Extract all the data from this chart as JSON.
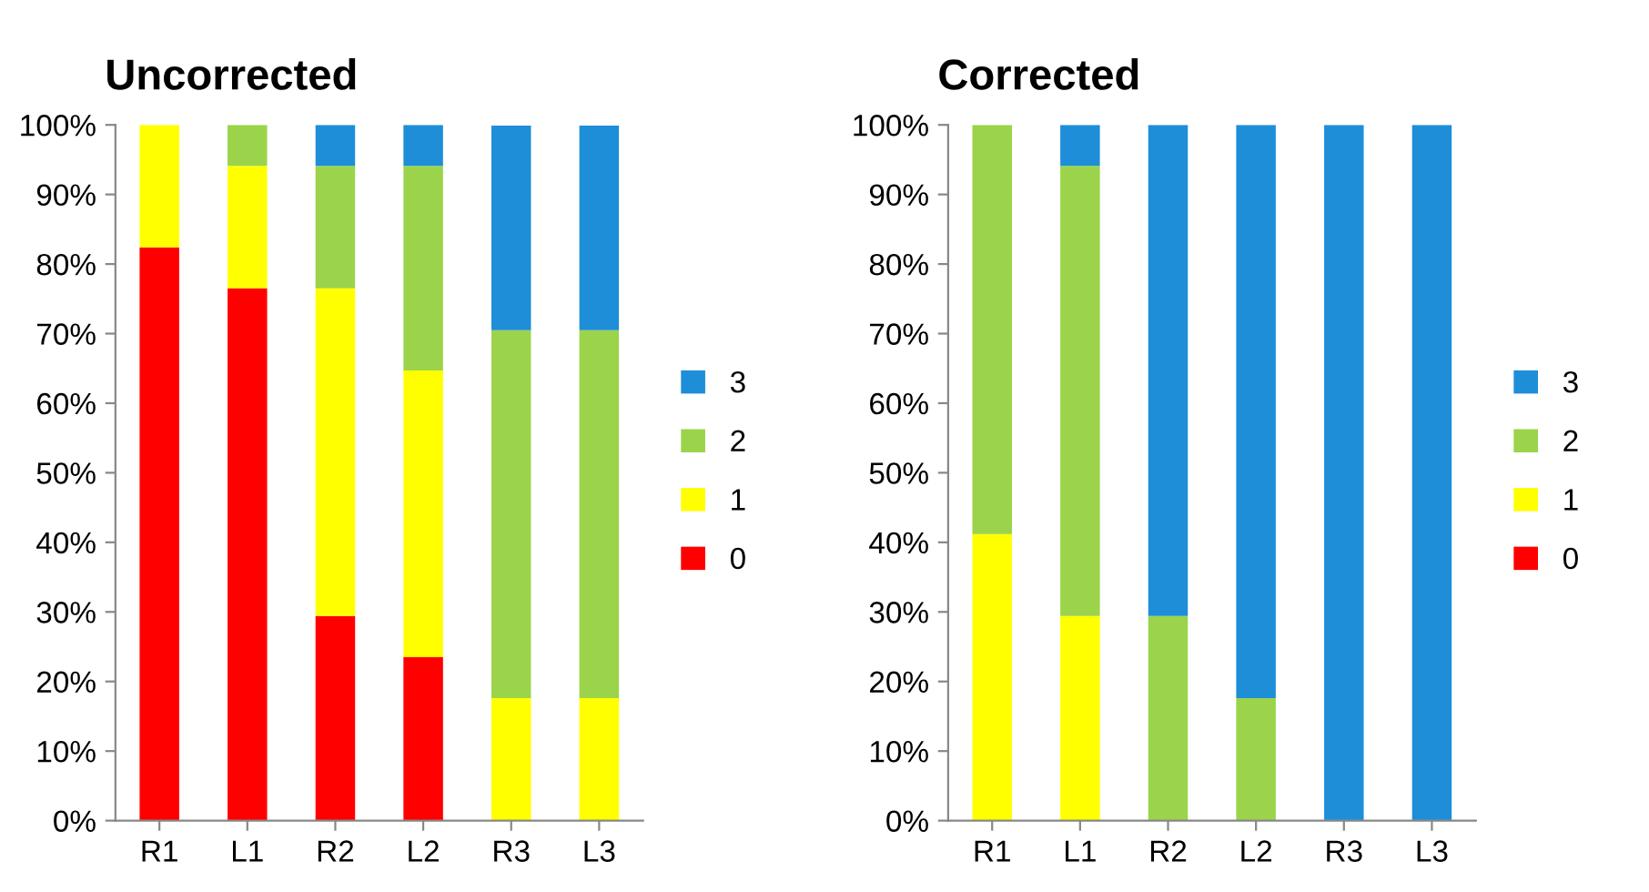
{
  "chart_data": [
    {
      "type": "bar",
      "title": "Uncorrected",
      "stacked": true,
      "legend": "right",
      "categories": [
        "R1",
        "L1",
        "R2",
        "L2",
        "R3",
        "L3"
      ],
      "ylim": [
        0,
        100
      ],
      "yticks": [
        {
          "value": 0,
          "label": "0%"
        },
        {
          "value": 10,
          "label": "10%"
        },
        {
          "value": 20,
          "label": "20%"
        },
        {
          "value": 30,
          "label": "30%"
        },
        {
          "value": 40,
          "label": "40%"
        },
        {
          "value": 50,
          "label": "50%"
        },
        {
          "value": 60,
          "label": "60%"
        },
        {
          "value": 70,
          "label": "70%"
        },
        {
          "value": 80,
          "label": "80%"
        },
        {
          "value": 90,
          "label": "90%"
        },
        {
          "value": 100,
          "label": "100%"
        }
      ],
      "series": [
        {
          "name": "0",
          "color": "#ff0000",
          "values": [
            82.4,
            76.5,
            29.4,
            23.5,
            0,
            0
          ]
        },
        {
          "name": "1",
          "color": "#ffff00",
          "values": [
            17.6,
            17.6,
            47.1,
            41.2,
            17.6,
            17.6
          ]
        },
        {
          "name": "2",
          "color": "#9bd44a",
          "values": [
            0,
            5.9,
            17.6,
            29.4,
            52.9,
            52.9
          ]
        },
        {
          "name": "3",
          "color": "#1e8ed8",
          "values": [
            0,
            0,
            5.9,
            5.9,
            29.4,
            29.4
          ]
        }
      ]
    },
    {
      "type": "bar",
      "title": "Corrected",
      "stacked": true,
      "legend": "right",
      "categories": [
        "R1",
        "L1",
        "R2",
        "L2",
        "R3",
        "L3"
      ],
      "ylim": [
        0,
        100
      ],
      "yticks": [
        {
          "value": 0,
          "label": "0%"
        },
        {
          "value": 10,
          "label": "10%"
        },
        {
          "value": 20,
          "label": "20%"
        },
        {
          "value": 30,
          "label": "30%"
        },
        {
          "value": 40,
          "label": "40%"
        },
        {
          "value": 50,
          "label": "50%"
        },
        {
          "value": 60,
          "label": "60%"
        },
        {
          "value": 70,
          "label": "70%"
        },
        {
          "value": 80,
          "label": "80%"
        },
        {
          "value": 90,
          "label": "90%"
        },
        {
          "value": 100,
          "label": "100%"
        }
      ],
      "series": [
        {
          "name": "0",
          "color": "#ff0000",
          "values": [
            0,
            0,
            0,
            0,
            0,
            0
          ]
        },
        {
          "name": "1",
          "color": "#ffff00",
          "values": [
            41.2,
            29.4,
            0,
            0,
            0,
            0
          ]
        },
        {
          "name": "2",
          "color": "#9bd44a",
          "values": [
            58.8,
            64.7,
            29.4,
            17.6,
            0,
            0
          ]
        },
        {
          "name": "3",
          "color": "#1e8ed8",
          "values": [
            0,
            5.9,
            70.6,
            82.4,
            100,
            100
          ]
        }
      ]
    }
  ]
}
